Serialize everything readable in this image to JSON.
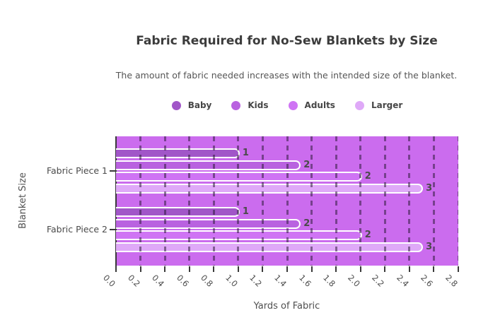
{
  "chart_data": {
    "type": "bar",
    "orientation": "horizontal",
    "title": "Fabric Required for No-Sew Blankets by Size",
    "subtitle": "The amount of fabric needed increases with the intended size of the blanket.",
    "xlabel": "Yards of Fabric",
    "ylabel": "Blanket Size",
    "categories": [
      "Fabric Piece 1",
      "Fabric Piece 2"
    ],
    "series": [
      {
        "name": "Baby",
        "color": "#a156c8",
        "values": [
          1.0,
          1.0
        ],
        "value_labels": [
          "1",
          "1"
        ]
      },
      {
        "name": "Kids",
        "color": "#b962e0",
        "values": [
          1.5,
          1.5
        ],
        "value_labels": [
          "2",
          "2"
        ]
      },
      {
        "name": "Adults",
        "color": "#cf74f4",
        "values": [
          2.0,
          2.0
        ],
        "value_labels": [
          "2",
          "2"
        ]
      },
      {
        "name": "Larger",
        "color": "#dfa9f8",
        "values": [
          2.5,
          2.5
        ],
        "value_labels": [
          "3",
          "3"
        ]
      }
    ],
    "xlim": [
      0,
      2.8
    ],
    "xticks": [
      "0.0",
      "0.2",
      "0.4",
      "0.6",
      "0.8",
      "1.0",
      "1.2",
      "1.4",
      "1.6",
      "1.8",
      "2.0",
      "2.2",
      "2.4",
      "2.6",
      "2.8"
    ],
    "legend_position": "top-center",
    "grid": "vertical-dashed",
    "colors": {
      "plot_background": "#cb6cee",
      "gridline": "rgba(40,23,52,0.52)",
      "axis": "#3a3a3a",
      "text": "#4a4a4a",
      "title_text": "#3c3c3c"
    }
  }
}
